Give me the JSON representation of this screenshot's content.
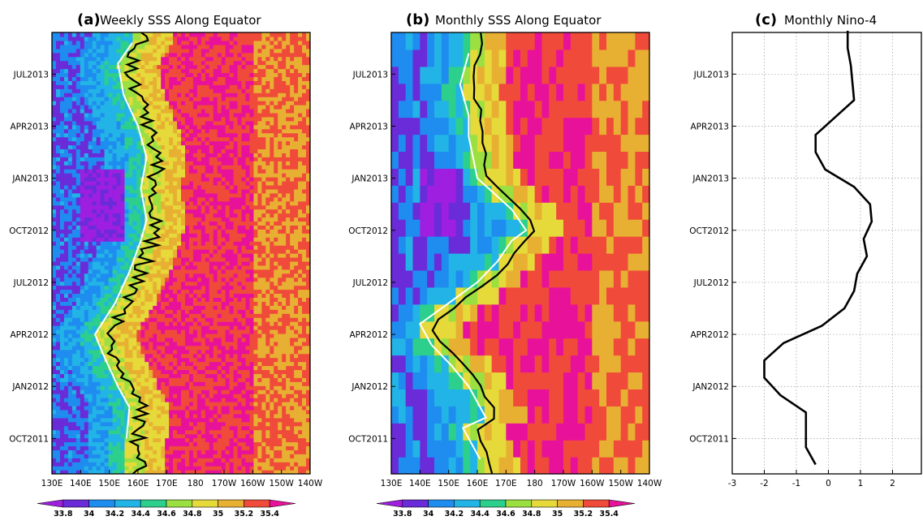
{
  "panels": [
    {
      "letter": "(a)",
      "title": "Weekly SSS Along Equator",
      "type": "heatmap",
      "x_ticks": [
        "130E",
        "140E",
        "150E",
        "160E",
        "170E",
        "180",
        "170W",
        "160W",
        "150W",
        "140W"
      ],
      "y_ticks": [
        "OCT2011",
        "JAN2012",
        "APR2012",
        "JUL2012",
        "OCT2012",
        "JAN2013",
        "APR2013",
        "JUL2013"
      ]
    },
    {
      "letter": "(b)",
      "title": "Monthly SSS Along Equator",
      "type": "heatmap",
      "x_ticks": [
        "130E",
        "140E",
        "150E",
        "160E",
        "170E",
        "180",
        "170W",
        "160W",
        "150W",
        "140W"
      ],
      "y_ticks": [
        "OCT2011",
        "JAN2012",
        "APR2012",
        "JUL2012",
        "OCT2012",
        "JAN2013",
        "APR2013",
        "JUL2013"
      ]
    },
    {
      "letter": "(c)",
      "title": "Monthly Nino-4",
      "type": "line",
      "x_ticks": [
        "-3",
        "-2",
        "-1",
        "0",
        "1",
        "2"
      ],
      "y_ticks": [
        "OCT2011",
        "JAN2012",
        "APR2012",
        "JUL2012",
        "OCT2012",
        "JAN2013",
        "APR2013",
        "JUL2013"
      ]
    }
  ],
  "colorbar": {
    "levels": [
      "33.8",
      "34",
      "34.2",
      "34.4",
      "34.6",
      "34.8",
      "35",
      "35.2",
      "35.4"
    ],
    "colors": [
      "#9e1fe0",
      "#6a2bd9",
      "#1f8cf0",
      "#22b4e6",
      "#2ccf8c",
      "#9be040",
      "#e6da3a",
      "#e8b032",
      "#f04a3a",
      "#e8129a"
    ]
  },
  "chart_data": [
    {
      "type": "heatmap",
      "title": "Weekly SSS Along Equator",
      "x": [
        "130E",
        "140E",
        "150E",
        "160E",
        "170E",
        "180",
        "170W",
        "160W",
        "150W",
        "140W"
      ],
      "y_range": [
        "AUG2011",
        "SEP2013"
      ],
      "value_levels": [
        33.8,
        34,
        34.2,
        34.4,
        34.6,
        34.8,
        35,
        35.2,
        35.4
      ],
      "fresh_pool_east_edge_lon_E": [
        [
          2011.75,
          156
        ],
        [
          2011.9,
          157
        ],
        [
          2012.0,
          153
        ],
        [
          2012.15,
          148
        ],
        [
          2012.25,
          145
        ],
        [
          2012.4,
          152
        ],
        [
          2012.55,
          157
        ],
        [
          2012.7,
          161
        ],
        [
          2012.8,
          163
        ],
        [
          2012.95,
          161
        ],
        [
          2013.1,
          163
        ],
        [
          2013.25,
          160
        ],
        [
          2013.4,
          155
        ],
        [
          2013.55,
          153
        ],
        [
          2013.65,
          158
        ]
      ]
    },
    {
      "type": "heatmap",
      "title": "Monthly SSS Along Equator",
      "x": [
        "130E",
        "140E",
        "150E",
        "160E",
        "170E",
        "180",
        "170W",
        "160W",
        "150W",
        "140W"
      ],
      "y_range": [
        "AUG2011",
        "SEP2013"
      ],
      "value_levels": [
        33.8,
        34,
        34.2,
        34.4,
        34.6,
        34.8,
        35,
        35.2,
        35.4
      ],
      "fresh_pool_east_edge_lon_E": [
        [
          2011.65,
          161
        ],
        [
          2011.8,
          155
        ],
        [
          2011.85,
          163
        ],
        [
          2012.0,
          157
        ],
        [
          2012.1,
          151
        ],
        [
          2012.2,
          144
        ],
        [
          2012.3,
          140
        ],
        [
          2012.4,
          150
        ],
        [
          2012.5,
          160
        ],
        [
          2012.6,
          167
        ],
        [
          2012.7,
          172
        ],
        [
          2012.75,
          177
        ],
        [
          2012.85,
          172
        ],
        [
          2013.0,
          160
        ],
        [
          2013.2,
          157
        ],
        [
          2013.3,
          157
        ],
        [
          2013.45,
          154
        ],
        [
          2013.6,
          157
        ]
      ]
    },
    {
      "type": "line",
      "title": "Monthly Nino-4",
      "xlim": [
        -3,
        2.9
      ],
      "y_range": [
        "AUG2011",
        "SEP2013"
      ],
      "series": [
        {
          "points": [
            [
              "AUG2011",
              -0.4
            ],
            [
              "SEP2011",
              -0.7
            ],
            [
              "OCT2011",
              -0.7
            ],
            [
              "NOV2011",
              -0.7
            ],
            [
              "DEC2011",
              -1.5
            ],
            [
              "JAN2012",
              -2.0
            ],
            [
              "FEB2012",
              -2.0
            ],
            [
              "MAR2012",
              -1.4
            ],
            [
              "APR2012",
              -0.2
            ],
            [
              "MAY2012",
              0.5
            ],
            [
              "JUN2012",
              0.8
            ],
            [
              "JUL2012",
              0.9
            ],
            [
              "AUG2012",
              1.2
            ],
            [
              "SEP2012",
              1.1
            ],
            [
              "OCT2012",
              1.35
            ],
            [
              "NOV2012",
              1.3
            ],
            [
              "DEC2012",
              0.8
            ],
            [
              "JAN2013",
              -0.1
            ],
            [
              "FEB2013",
              -0.4
            ],
            [
              "MAR2013",
              -0.4
            ],
            [
              "APR2013",
              0.2
            ],
            [
              "MAY2013",
              0.8
            ],
            [
              "JUN2013",
              0.75
            ],
            [
              "JUL2013",
              0.7
            ],
            [
              "AUG2013",
              0.6
            ],
            [
              "SEP2013",
              0.6
            ]
          ]
        }
      ]
    }
  ]
}
